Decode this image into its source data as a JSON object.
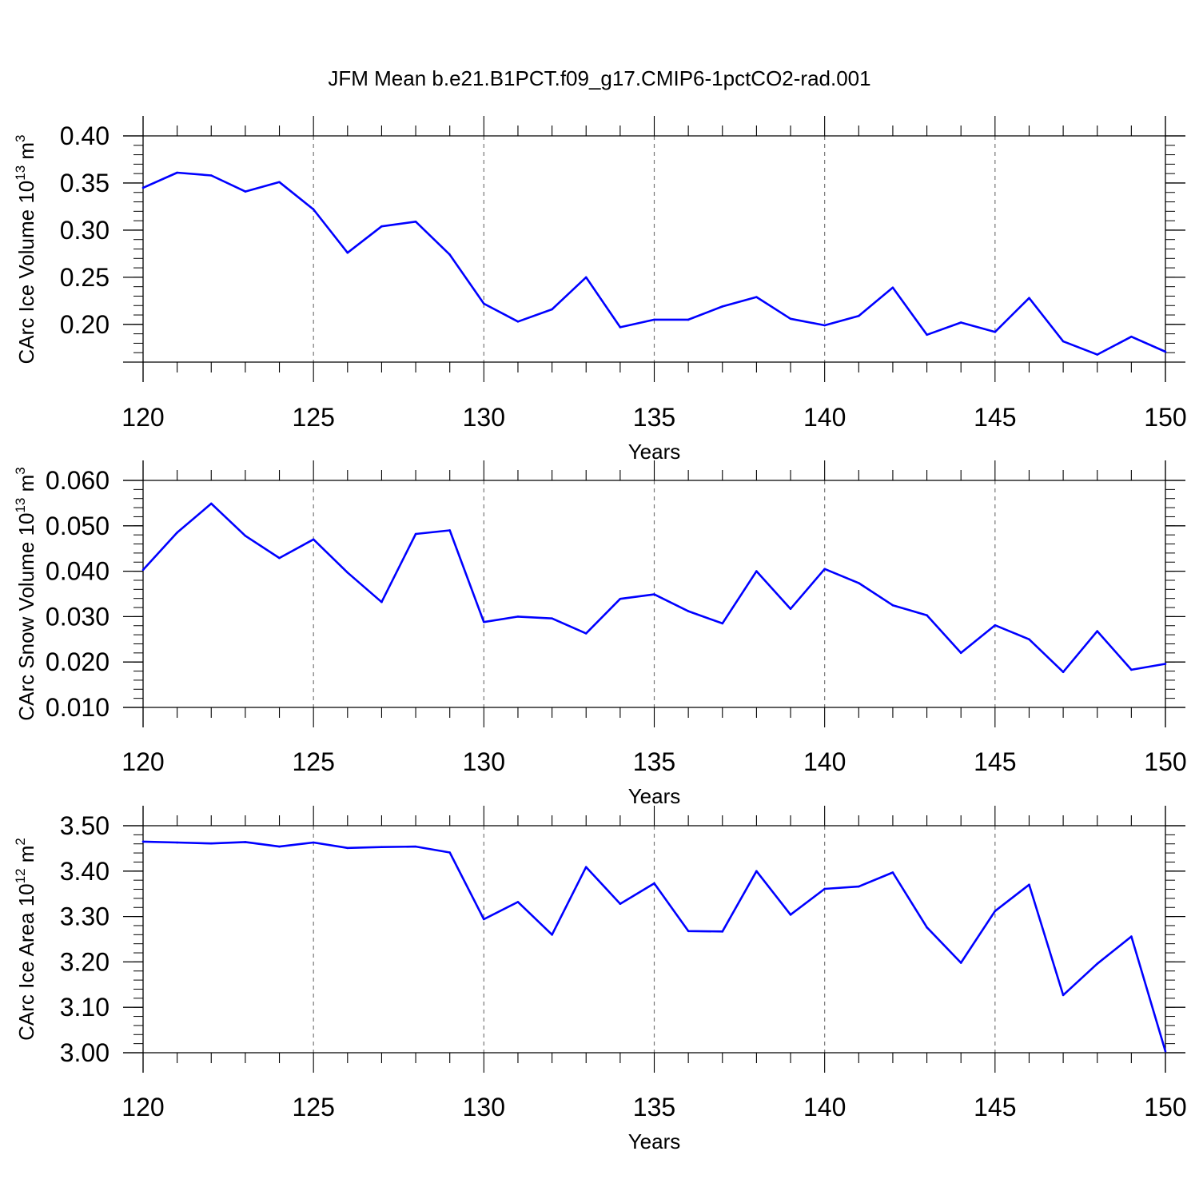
{
  "page_title": "JFM Mean b.e21.B1PCT.f09_g17.CMIP6-1pctCO2-rad.001",
  "chart_data": [
    {
      "type": "line",
      "title": "JFM Mean b.e21.B1PCT.f09_g17.CMIP6-1pctCO2-rad.001",
      "xlabel": "Years",
      "ylabel": "CArc Ice Volume 10",
      "ylabel_exp": "13",
      "ylabel_unit": " m",
      "ylabel_unit_exp": "3",
      "xlim": [
        120,
        150
      ],
      "ylim": [
        0.16,
        0.4
      ],
      "x_ticks": [
        120,
        125,
        130,
        135,
        140,
        145,
        150
      ],
      "y_ticks": [
        0.2,
        0.25,
        0.3,
        0.35,
        0.4
      ],
      "y_tick_labels": [
        "0.20",
        "0.25",
        "0.30",
        "0.35",
        "0.40"
      ],
      "y_minor_step": 0.01,
      "grid": "vertical dashed at major x ticks",
      "line_color": "#0000ff",
      "series": [
        {
          "name": "CArc Ice Volume",
          "x": [
            120,
            121,
            122,
            123,
            124,
            125,
            126,
            127,
            128,
            129,
            130,
            131,
            132,
            133,
            134,
            135,
            136,
            137,
            138,
            139,
            140,
            141,
            142,
            143,
            144,
            145,
            146,
            147,
            148,
            149,
            150
          ],
          "values": [
            0.345,
            0.361,
            0.358,
            0.341,
            0.351,
            0.322,
            0.276,
            0.304,
            0.309,
            0.274,
            0.222,
            0.203,
            0.216,
            0.25,
            0.197,
            0.205,
            0.205,
            0.219,
            0.229,
            0.206,
            0.199,
            0.209,
            0.239,
            0.189,
            0.202,
            0.192,
            0.228,
            0.182,
            0.168,
            0.187,
            0.171
          ]
        }
      ]
    },
    {
      "type": "line",
      "xlabel": "Years",
      "ylabel": "CArc Snow Volume 10",
      "ylabel_exp": "13",
      "ylabel_unit": " m",
      "ylabel_unit_exp": "3",
      "xlim": [
        120,
        150
      ],
      "ylim": [
        0.01,
        0.06
      ],
      "x_ticks": [
        120,
        125,
        130,
        135,
        140,
        145,
        150
      ],
      "y_ticks": [
        0.01,
        0.02,
        0.03,
        0.04,
        0.05,
        0.06
      ],
      "y_tick_labels": [
        "0.010",
        "0.020",
        "0.030",
        "0.040",
        "0.050",
        "0.060"
      ],
      "y_minor_step": 0.002,
      "grid": "vertical dashed at major x ticks",
      "line_color": "#0000ff",
      "series": [
        {
          "name": "CArc Snow Volume",
          "x": [
            120,
            121,
            122,
            123,
            124,
            125,
            126,
            127,
            128,
            129,
            130,
            131,
            132,
            133,
            134,
            135,
            136,
            137,
            138,
            139,
            140,
            141,
            142,
            143,
            144,
            145,
            146,
            147,
            148,
            149,
            150
          ],
          "values": [
            0.0403,
            0.0485,
            0.0549,
            0.0478,
            0.0429,
            0.047,
            0.0397,
            0.0332,
            0.0482,
            0.049,
            0.0288,
            0.03,
            0.0296,
            0.0263,
            0.0339,
            0.0349,
            0.0312,
            0.0285,
            0.04,
            0.0317,
            0.0405,
            0.0374,
            0.0325,
            0.0303,
            0.022,
            0.0281,
            0.025,
            0.0178,
            0.0268,
            0.0183,
            0.0196
          ]
        }
      ]
    },
    {
      "type": "line",
      "xlabel": "Years",
      "ylabel": "CArc Ice Area 10",
      "ylabel_exp": "12",
      "ylabel_unit": " m",
      "ylabel_unit_exp": "2",
      "xlim": [
        120,
        150
      ],
      "ylim": [
        3.0,
        3.5
      ],
      "x_ticks": [
        120,
        125,
        130,
        135,
        140,
        145,
        150
      ],
      "y_ticks": [
        3.0,
        3.1,
        3.2,
        3.3,
        3.4,
        3.5
      ],
      "y_tick_labels": [
        "3.00",
        "3.10",
        "3.20",
        "3.30",
        "3.40",
        "3.50"
      ],
      "y_minor_step": 0.02,
      "grid": "vertical dashed at major x ticks",
      "line_color": "#0000ff",
      "series": [
        {
          "name": "CArc Ice Area",
          "x": [
            120,
            121,
            122,
            123,
            124,
            125,
            126,
            127,
            128,
            129,
            130,
            131,
            132,
            133,
            134,
            135,
            136,
            137,
            138,
            139,
            140,
            141,
            142,
            143,
            144,
            145,
            146,
            147,
            148,
            149,
            150
          ],
          "values": [
            3.465,
            3.463,
            3.461,
            3.464,
            3.454,
            3.463,
            3.451,
            3.453,
            3.454,
            3.441,
            3.294,
            3.332,
            3.26,
            3.409,
            3.328,
            3.373,
            3.268,
            3.267,
            3.4,
            3.304,
            3.361,
            3.366,
            3.397,
            3.276,
            3.198,
            3.312,
            3.37,
            3.127,
            3.196,
            3.256,
            3.003
          ]
        }
      ]
    }
  ]
}
